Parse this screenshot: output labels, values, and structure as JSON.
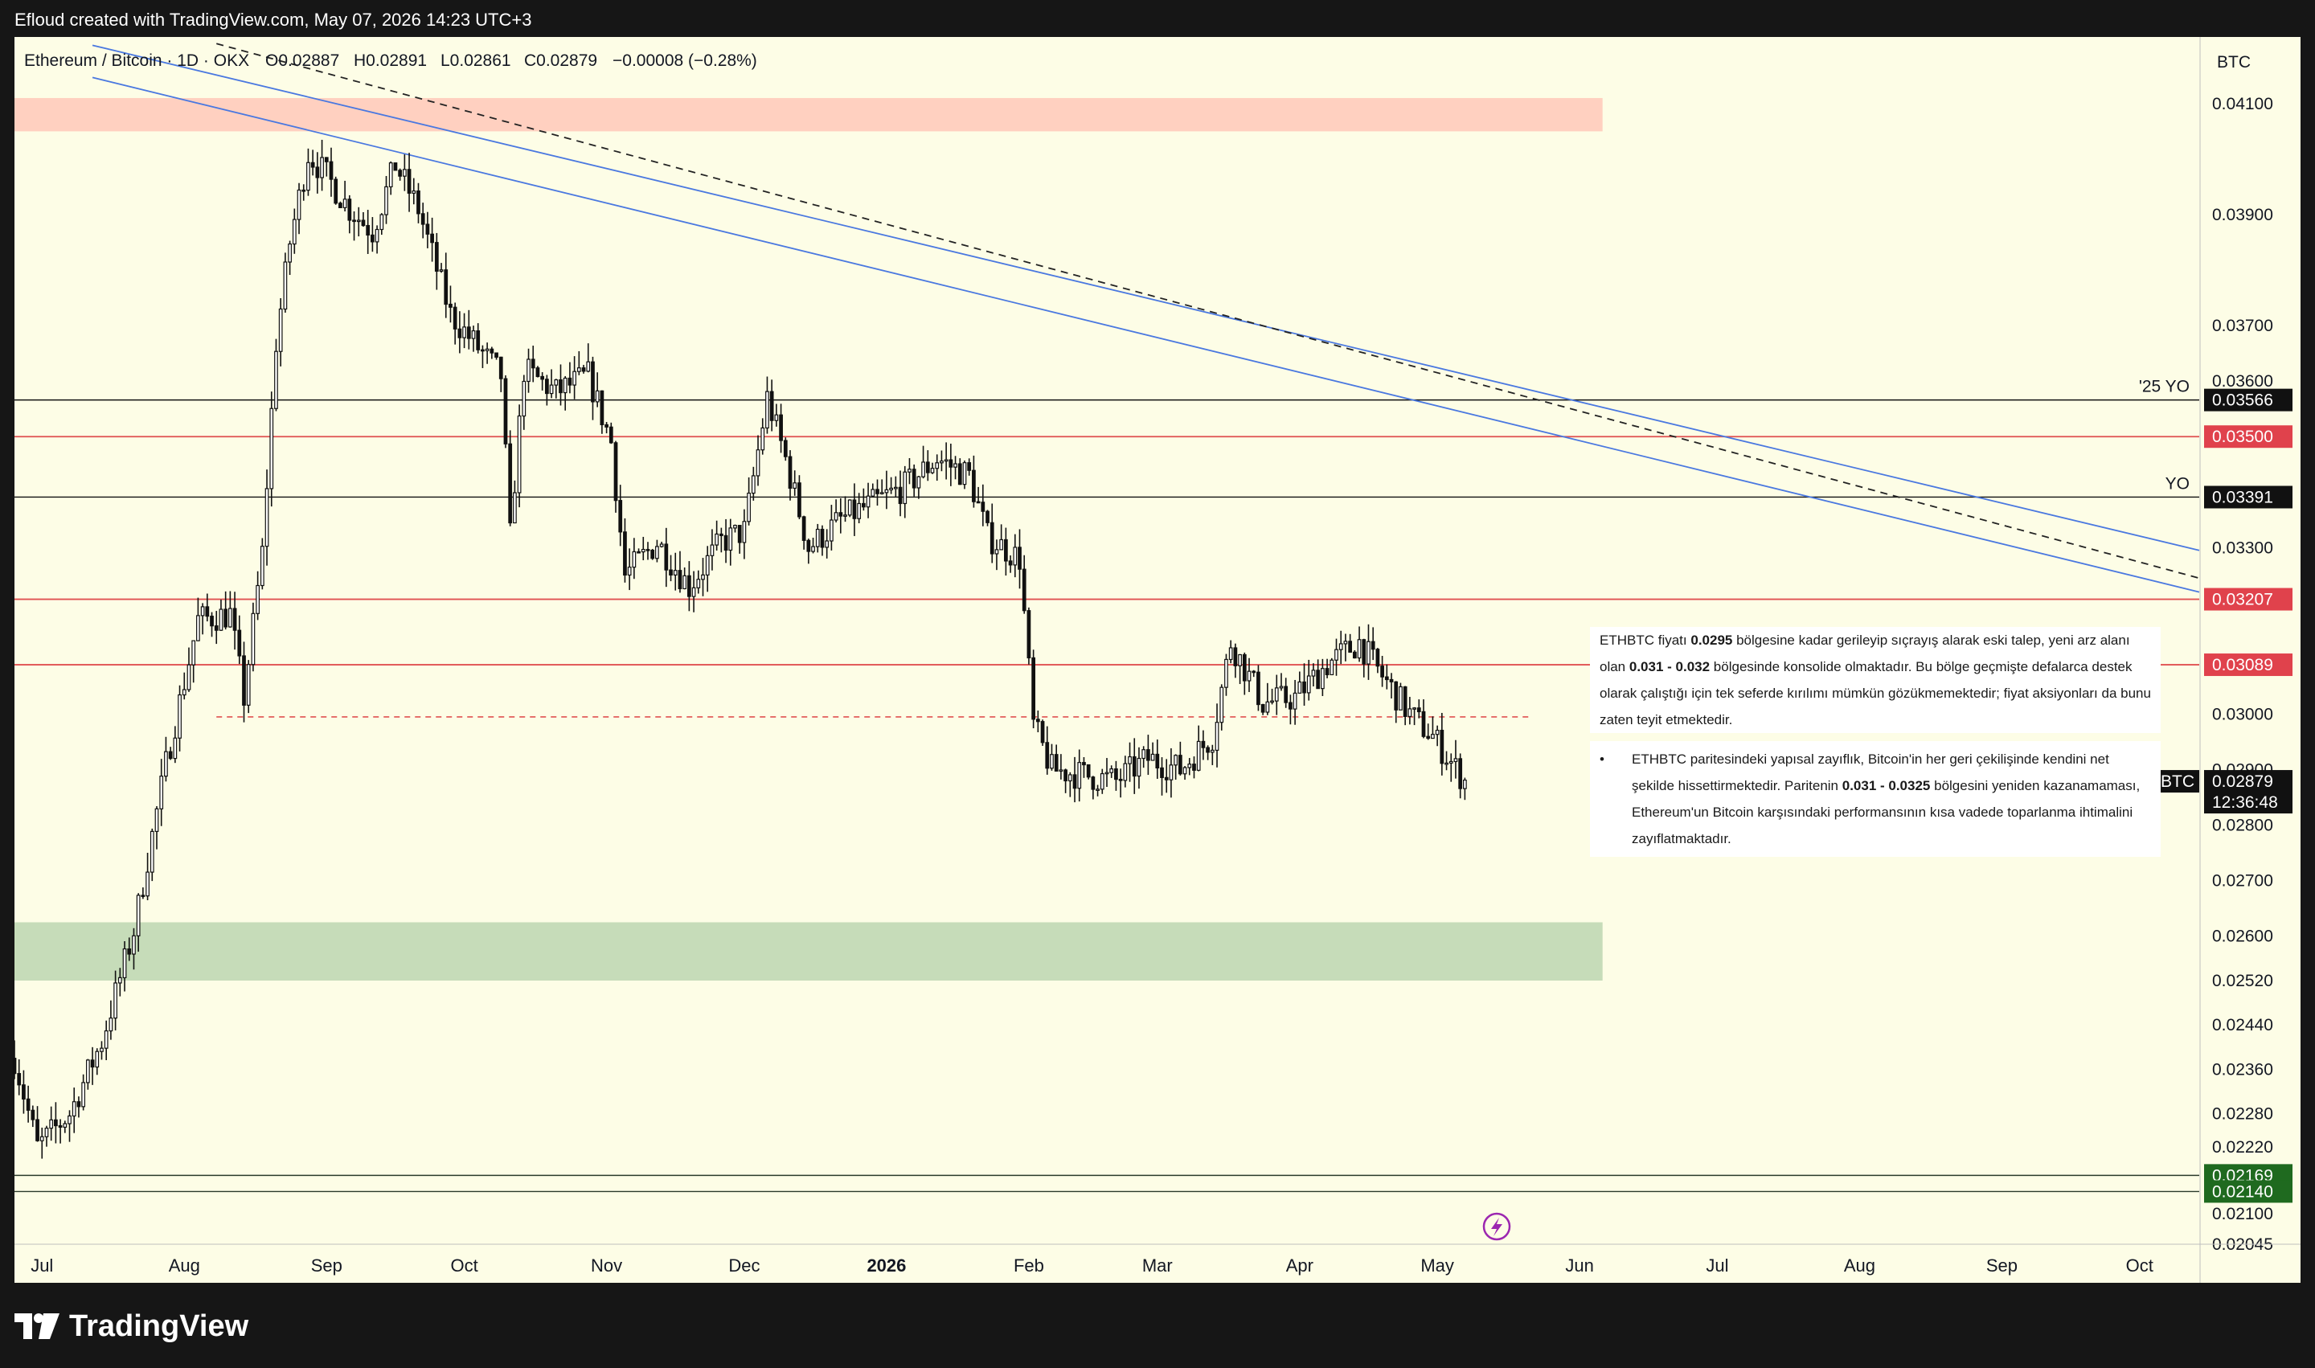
{
  "header": {
    "text": "Efloud created with TradingView.com, May 07, 2026 14:23 UTC+3"
  },
  "legend": {
    "symbol": "Ethereum / Bitcoin · 1D · OKX",
    "open": "O0.02887",
    "high": "H0.02891",
    "low": "L0.02861",
    "close": "C0.02879",
    "change": "−0.00008 (−0.28%)"
  },
  "price_axis": {
    "currency": "BTC",
    "ticks": [
      "0.04100",
      "0.03900",
      "0.03700",
      "0.03600",
      "0.03300",
      "0.03000",
      "0.02900",
      "0.02800",
      "0.02700",
      "0.02600",
      "0.02520",
      "0.02440",
      "0.02360",
      "0.02280",
      "0.02220",
      "0.02100",
      "0.02045"
    ]
  },
  "time_axis": {
    "labels": [
      "Jul",
      "Aug",
      "Sep",
      "Oct",
      "Nov",
      "Dec",
      "2026",
      "Feb",
      "Mar",
      "Apr",
      "May",
      "Jun",
      "Jul",
      "Aug",
      "Sep",
      "Oct"
    ]
  },
  "levels": [
    {
      "value": 0.03566,
      "label": "0.03566",
      "kind": "black",
      "tag": "'25 YO"
    },
    {
      "value": 0.035,
      "label": "0.03500",
      "kind": "red",
      "tag": ""
    },
    {
      "value": 0.03391,
      "label": "0.03391",
      "kind": "black",
      "tag": "YO"
    },
    {
      "value": 0.03207,
      "label": "0.03207",
      "kind": "red",
      "tag": ""
    },
    {
      "value": 0.03089,
      "label": "0.03089",
      "kind": "red",
      "tag": ""
    },
    {
      "value": 0.02169,
      "label": "0.02169",
      "kind": "green",
      "tag": ""
    },
    {
      "value": 0.0214,
      "label": "0.02140",
      "kind": "green",
      "tag": ""
    }
  ],
  "last_price": {
    "symbol": "ETHBTC",
    "price": "0.02879",
    "countdown": "12:36:48"
  },
  "notes": {
    "note1": {
      "p1": "ETHBTC fiyatı ",
      "b1": "0.0295",
      "p2": " bölgesine kadar gerileyip sıçrayış alarak eski talep, yeni arz alanı olan ",
      "b2": "0.031 - 0.032",
      "p3": " bölgesinde konsolide olmaktadır. Bu bölge geçmişte defalarca destek olarak çalıştığı için tek seferde kırılımı mümkün gözükmemektedir; fiyat aksiyonları da bunu zaten teyit etmektedir."
    },
    "note2": {
      "bullet": "•",
      "p1": "ETHBTC paritesindeki yapısal zayıflık, Bitcoin'in her geri çekilişinde kendini net şekilde hissettirmektedir. Paritenin ",
      "b1": "0.031 - 0.0325",
      "p2": " bölgesini yeniden kazanamaması, Ethereum'un Bitcoin karşısındaki performansının kısa vadede toparlanma ihtimalini zayıflatmaktadır."
    }
  },
  "branding": {
    "logo_text": "TradingView"
  },
  "colors": {
    "background": "#fdfde6",
    "frame": "#161616",
    "supply_zone": "#ffd0c0",
    "demand_zone": "#c6dcb9",
    "trend_line": "#4a78e0",
    "red_level": "#e05050",
    "green_level": "#1f6a1f"
  },
  "chart_data": {
    "type": "candlestick",
    "symbol": "ETHBTC",
    "y_range": [
      0.02045,
      0.0422
    ],
    "x_range": [
      "2025-06-25",
      "2026-10-14"
    ],
    "zones": [
      {
        "name": "supply",
        "from": 0.0405,
        "to": 0.0411,
        "x_from": "2025-06-25",
        "x_to": "2026-06-06"
      },
      {
        "name": "demand",
        "from": 0.0252,
        "to": 0.02625,
        "x_from": "2025-06-25",
        "x_to": "2026-06-06"
      }
    ],
    "dashed_level": {
      "value": 0.02995,
      "x_from": "2025-08-08",
      "x_to": "2026-05-21"
    },
    "trend_channel": {
      "upper": [
        [
          "2025-07-12",
          0.04205
        ],
        [
          "2026-10-14",
          0.03295
        ]
      ],
      "lower": [
        [
          "2025-07-12",
          0.04147
        ],
        [
          "2026-10-14",
          0.0322
        ]
      ],
      "mid_dashed": [
        [
          "2025-08-08",
          0.04208
        ],
        [
          "2026-10-14",
          0.03245
        ]
      ]
    },
    "anchors": [
      [
        "2025-06-25",
        0.0238
      ],
      [
        "2025-06-30",
        0.0222
      ],
      [
        "2025-07-07",
        0.0228
      ],
      [
        "2025-07-14",
        0.0241
      ],
      [
        "2025-07-21",
        0.0261
      ],
      [
        "2025-07-28",
        0.0291
      ],
      [
        "2025-08-04",
        0.0317
      ],
      [
        "2025-08-11",
        0.0318
      ],
      [
        "2025-08-14",
        0.0303
      ],
      [
        "2025-08-18",
        0.0329
      ],
      [
        "2025-08-21",
        0.0367
      ],
      [
        "2025-08-24",
        0.0385
      ],
      [
        "2025-08-28",
        0.0401
      ],
      [
        "2025-09-01",
        0.0397
      ],
      [
        "2025-09-06",
        0.0391
      ],
      [
        "2025-09-11",
        0.0387
      ],
      [
        "2025-09-16",
        0.0399
      ],
      [
        "2025-09-21",
        0.0391
      ],
      [
        "2025-09-28",
        0.0372
      ],
      [
        "2025-10-05",
        0.0365
      ],
      [
        "2025-10-09",
        0.0361
      ],
      [
        "2025-10-11",
        0.0332
      ],
      [
        "2025-10-14",
        0.0362
      ],
      [
        "2025-10-21",
        0.0358
      ],
      [
        "2025-10-28",
        0.0361
      ],
      [
        "2025-11-02",
        0.0349
      ],
      [
        "2025-11-05",
        0.0325
      ],
      [
        "2025-11-12",
        0.0331
      ],
      [
        "2025-11-19",
        0.0323
      ],
      [
        "2025-11-26",
        0.0331
      ],
      [
        "2025-12-01",
        0.0333
      ],
      [
        "2025-12-06",
        0.0357
      ],
      [
        "2025-12-10",
        0.0346
      ],
      [
        "2025-12-15",
        0.033
      ],
      [
        "2025-12-22",
        0.0335
      ],
      [
        "2025-12-29",
        0.0338
      ],
      [
        "2026-01-05",
        0.0341
      ],
      [
        "2026-01-12",
        0.0346
      ],
      [
        "2026-01-19",
        0.0343
      ],
      [
        "2026-01-23",
        0.0332
      ],
      [
        "2026-01-30",
        0.0328
      ],
      [
        "2026-02-02",
        0.0298
      ],
      [
        "2026-02-06",
        0.029
      ],
      [
        "2026-02-13",
        0.0289
      ],
      [
        "2026-02-20",
        0.0288
      ],
      [
        "2026-02-27",
        0.0292
      ],
      [
        "2026-03-06",
        0.029
      ],
      [
        "2026-03-13",
        0.0296
      ],
      [
        "2026-03-17",
        0.0313
      ],
      [
        "2026-03-24",
        0.0302
      ],
      [
        "2026-03-31",
        0.0303
      ],
      [
        "2026-04-07",
        0.0309
      ],
      [
        "2026-04-14",
        0.0313
      ],
      [
        "2026-04-18",
        0.0308
      ],
      [
        "2026-04-25",
        0.03
      ],
      [
        "2026-04-30",
        0.0296
      ],
      [
        "2026-05-07",
        0.02879
      ]
    ]
  }
}
